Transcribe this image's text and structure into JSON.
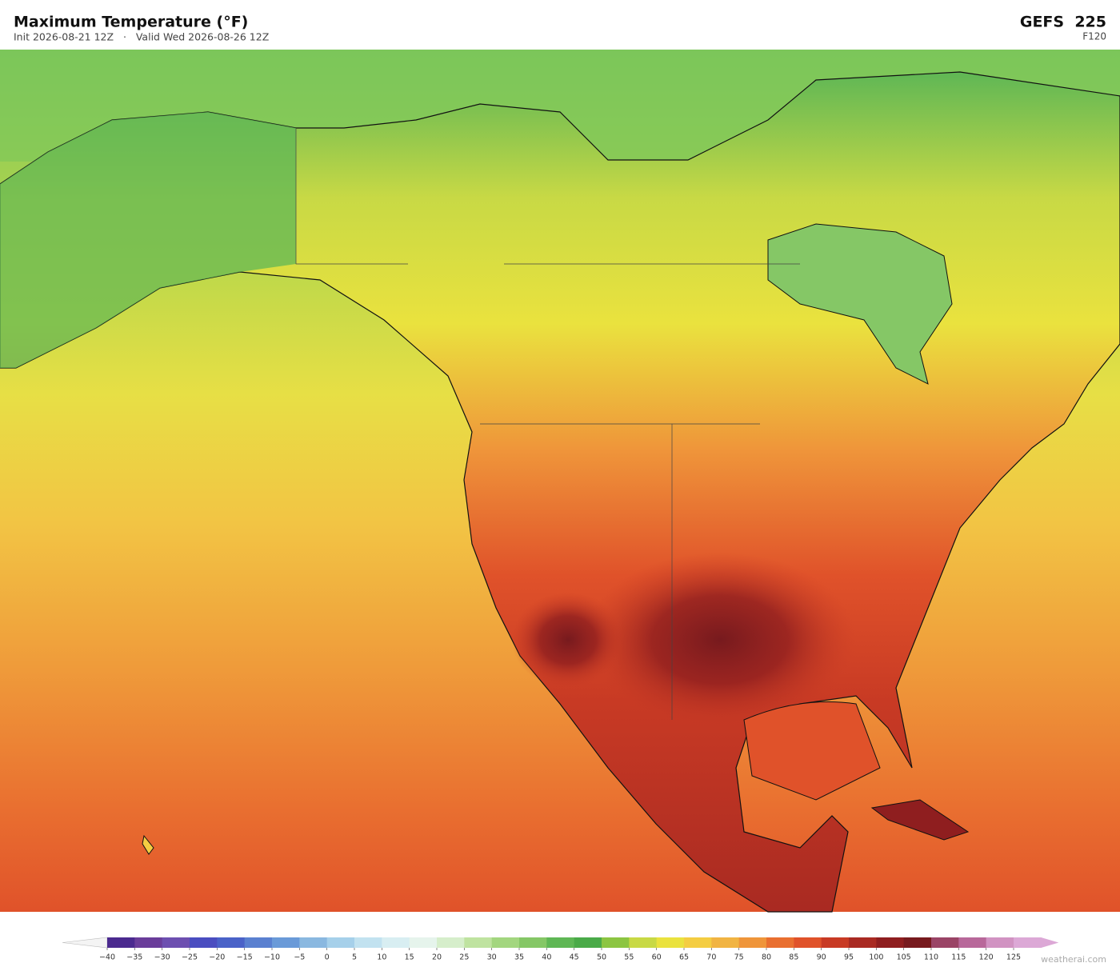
{
  "header": {
    "title": "Maximum Temperature  (°F)",
    "subtitle": "Init 2026-08-21 12Z   ·   Valid Wed 2026-08-26 12Z",
    "model": "GEFS  225",
    "forecast_hour": "F120"
  },
  "colorbar": {
    "ticks": [
      {
        "value": -40,
        "label": "−40"
      },
      {
        "value": -35,
        "label": "−35"
      },
      {
        "value": -30,
        "label": "−30"
      },
      {
        "value": -25,
        "label": "−25"
      },
      {
        "value": -20,
        "label": "−20"
      },
      {
        "value": -15,
        "label": "−15"
      },
      {
        "value": -10,
        "label": "−10"
      },
      {
        "value": -5,
        "label": "−5"
      },
      0,
      5,
      10,
      15,
      20,
      25,
      30,
      35,
      40,
      45,
      50,
      55,
      60,
      65,
      70,
      75,
      80,
      85,
      90,
      95,
      100,
      105,
      110,
      115,
      120,
      125
    ],
    "colors": [
      "#4b2a8f",
      "#6a3d9a",
      "#6d4fb0",
      "#4a4dc0",
      "#4a62c8",
      "#5a80d0",
      "#6a9ad8",
      "#8ab8e0",
      "#a6d0ea",
      "#c2e2f0",
      "#d8eef2",
      "#e6f4ec",
      "#d6eecb",
      "#bfe3a0",
      "#a3d67f",
      "#85c766",
      "#5fb755",
      "#4aaa48",
      "#8cc542",
      "#c8d945",
      "#eae23e",
      "#f4cd42",
      "#f1b443",
      "#ef953a",
      "#e96f30",
      "#e0522a",
      "#c83a24",
      "#a92a22",
      "#8f1e1f",
      "#771a1e",
      "#9a4466",
      "#b8689a",
      "#d193c2",
      "#dca8d6"
    ],
    "under_color": "#f4f4f4",
    "over_color": "#dca8d6"
  },
  "watermark": "weatherai.com"
}
